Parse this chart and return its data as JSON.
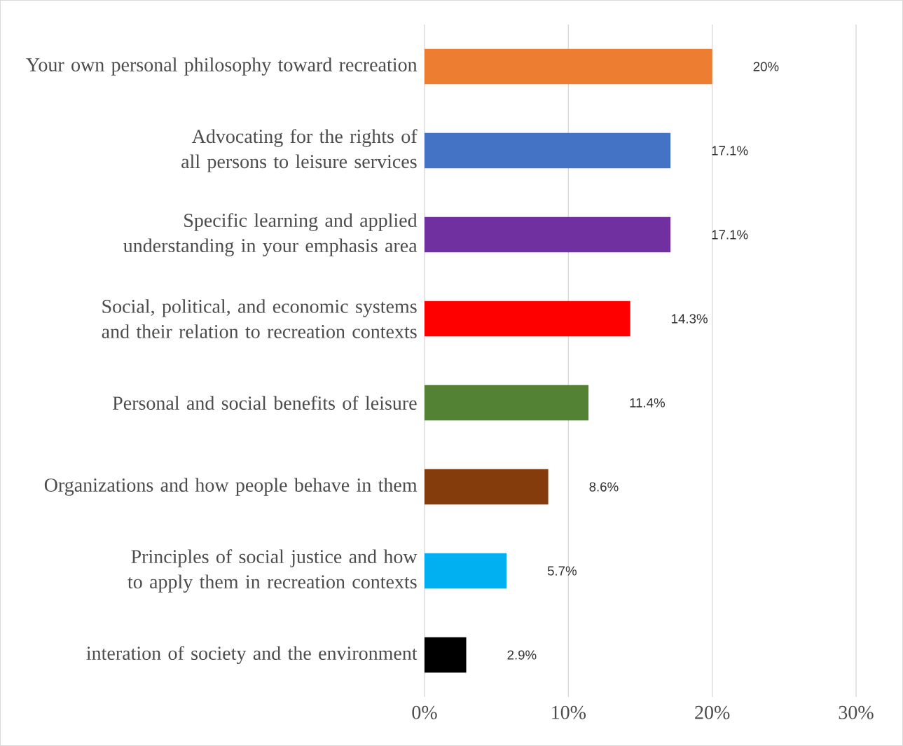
{
  "chart_data": {
    "type": "bar",
    "orientation": "horizontal",
    "categories": [
      "Your own personal philosophy toward recreation",
      "Advocating for the rights of all persons to leisure services",
      "Specific learning and applied understanding in your emphasis area",
      "Social, political, and economic systems and their relation to recreation contexts",
      "Personal and social benefits of leisure",
      "Organizations and how people behave in them",
      "Principles of social justice and how to apply them in recreation contexts",
      "interation of society and the environment"
    ],
    "values": [
      20,
      17.1,
      17.1,
      14.3,
      11.4,
      8.6,
      5.7,
      2.9
    ],
    "value_labels": [
      "20%",
      "17.1%",
      "17.1%",
      "14.3%",
      "11.4%",
      "8.6%",
      "5.7%",
      "2.9%"
    ],
    "colors": [
      "#ed7d31",
      "#4472c4",
      "#7030a0",
      "#ff0000",
      "#548235",
      "#843c0c",
      "#00b0f0",
      "#000000"
    ],
    "xlim": [
      0,
      30
    ],
    "xticks": [
      {
        "value": 0,
        "label": "0%"
      },
      {
        "value": 10,
        "label": "10%"
      },
      {
        "value": 20,
        "label": "20%"
      },
      {
        "value": 30,
        "label": "30%"
      }
    ],
    "grid": "x"
  }
}
